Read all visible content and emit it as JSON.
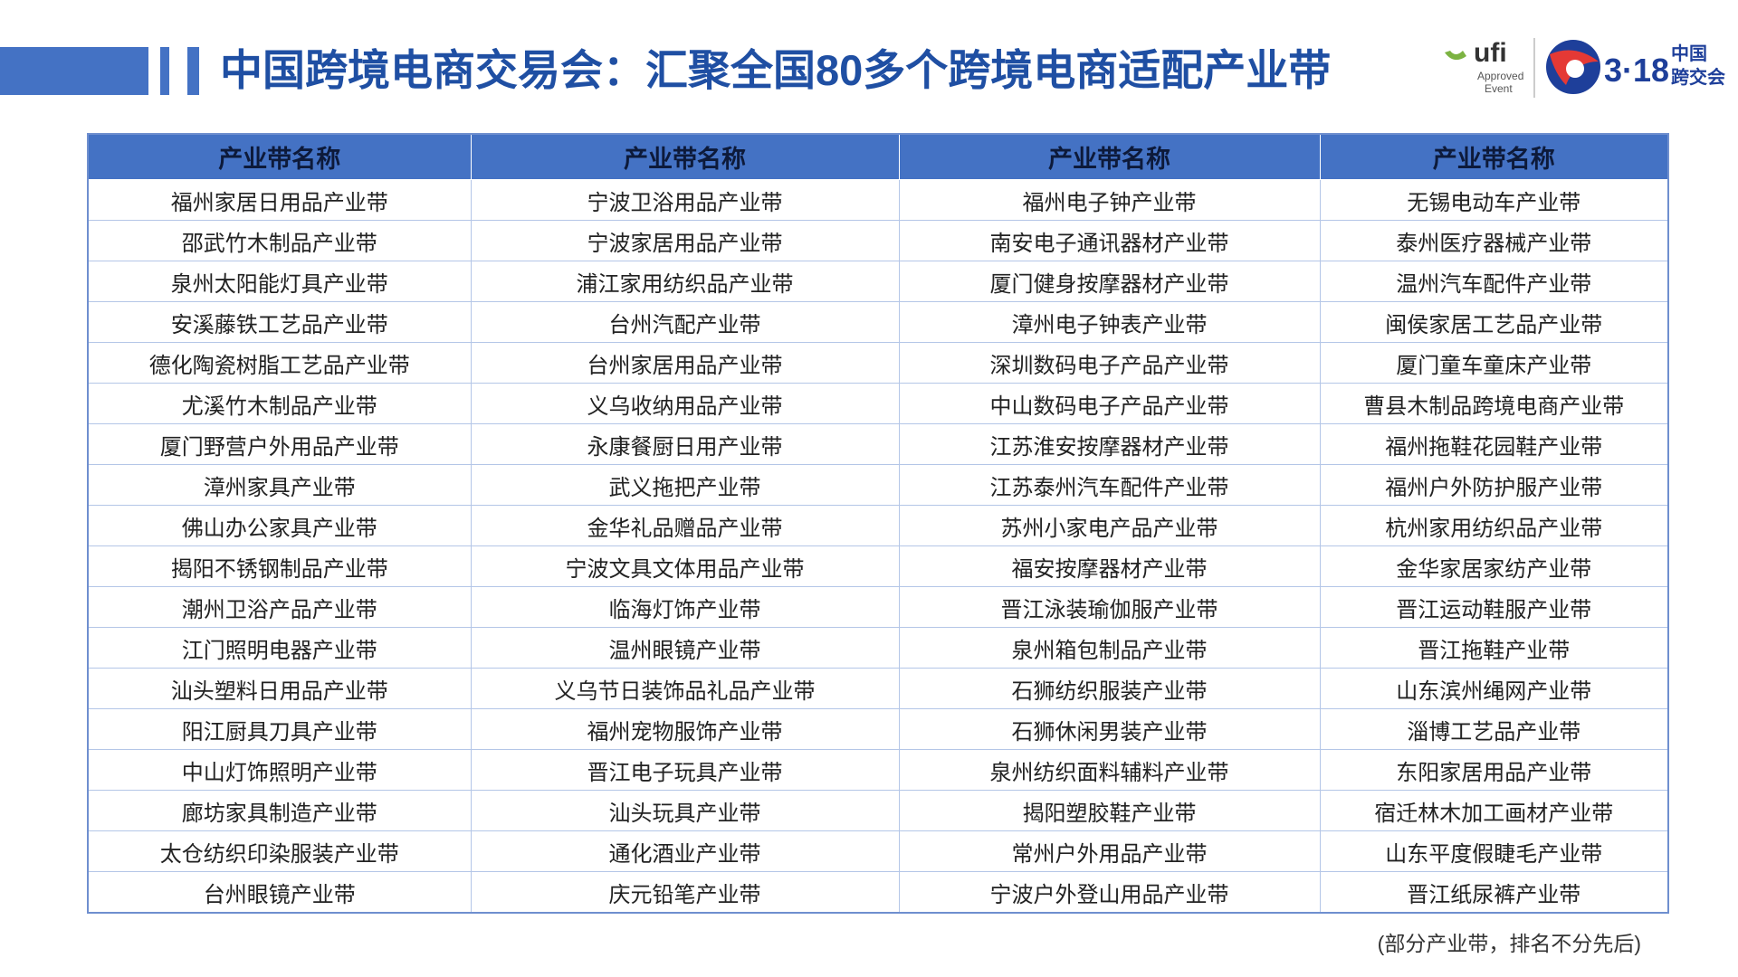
{
  "header": {
    "title": "中国跨境电商交易会：汇聚全国80多个跨境电商适配产业带",
    "logo_ufi": {
      "brand": "ufi",
      "line1": "Approved",
      "line2": "Event"
    },
    "logo_event": {
      "date": "3·18",
      "line1": "中国",
      "line2": "跨交会"
    }
  },
  "table": {
    "headers": [
      "产业带名称",
      "产业带名称",
      "产业带名称",
      "产业带名称"
    ],
    "rows": [
      [
        "福州家居日用品产业带",
        "宁波卫浴用品产业带",
        "福州电子钟产业带",
        "无锡电动车产业带"
      ],
      [
        "邵武竹木制品产业带",
        "宁波家居用品产业带",
        "南安电子通讯器材产业带",
        "泰州医疗器械产业带"
      ],
      [
        "泉州太阳能灯具产业带",
        "浦江家用纺织品产业带",
        "厦门健身按摩器材产业带",
        "温州汽车配件产业带"
      ],
      [
        "安溪藤铁工艺品产业带",
        "台州汽配产业带",
        "漳州电子钟表产业带",
        "闽侯家居工艺品产业带"
      ],
      [
        "德化陶瓷树脂工艺品产业带",
        "台州家居用品产业带",
        "深圳数码电子产品产业带",
        "厦门童车童床产业带"
      ],
      [
        "尤溪竹木制品产业带",
        "义乌收纳用品产业带",
        "中山数码电子产品产业带",
        "曹县木制品跨境电商产业带"
      ],
      [
        "厦门野营户外用品产业带",
        "永康餐厨日用产业带",
        "江苏淮安按摩器材产业带",
        "福州拖鞋花园鞋产业带"
      ],
      [
        "漳州家具产业带",
        "武义拖把产业带",
        "江苏泰州汽车配件产业带",
        "福州户外防护服产业带"
      ],
      [
        "佛山办公家具产业带",
        "金华礼品赠品产业带",
        "苏州小家电产品产业带",
        "杭州家用纺织品产业带"
      ],
      [
        "揭阳不锈钢制品产业带",
        "宁波文具文体用品产业带",
        "福安按摩器材产业带",
        "金华家居家纺产业带"
      ],
      [
        "潮州卫浴产品产业带",
        "临海灯饰产业带",
        "晋江泳装瑜伽服产业带",
        "晋江运动鞋服产业带"
      ],
      [
        "江门照明电器产业带",
        "温州眼镜产业带",
        "泉州箱包制品产业带",
        "晋江拖鞋产业带"
      ],
      [
        "汕头塑料日用品产业带",
        "义乌节日装饰品礼品产业带",
        "石狮纺织服装产业带",
        "山东滨州绳网产业带"
      ],
      [
        "阳江厨具刀具产业带",
        "福州宠物服饰产业带",
        "石狮休闲男装产业带",
        "淄博工艺品产业带"
      ],
      [
        "中山灯饰照明产业带",
        "晋江电子玩具产业带",
        "泉州纺织面料辅料产业带",
        "东阳家居用品产业带"
      ],
      [
        "廊坊家具制造产业带",
        "汕头玩具产业带",
        "揭阳塑胶鞋产业带",
        "宿迁林木加工画材产业带"
      ],
      [
        "太仓纺织印染服装产业带",
        "通化酒业产业带",
        "常州户外用品产业带",
        "山东平度假睫毛产业带"
      ],
      [
        "台州眼镜产业带",
        "庆元铅笔产业带",
        "宁波户外登山用品产业带",
        "晋江纸尿裤产业带"
      ]
    ]
  },
  "footnote": "(部分产业带，排名不分先后)"
}
